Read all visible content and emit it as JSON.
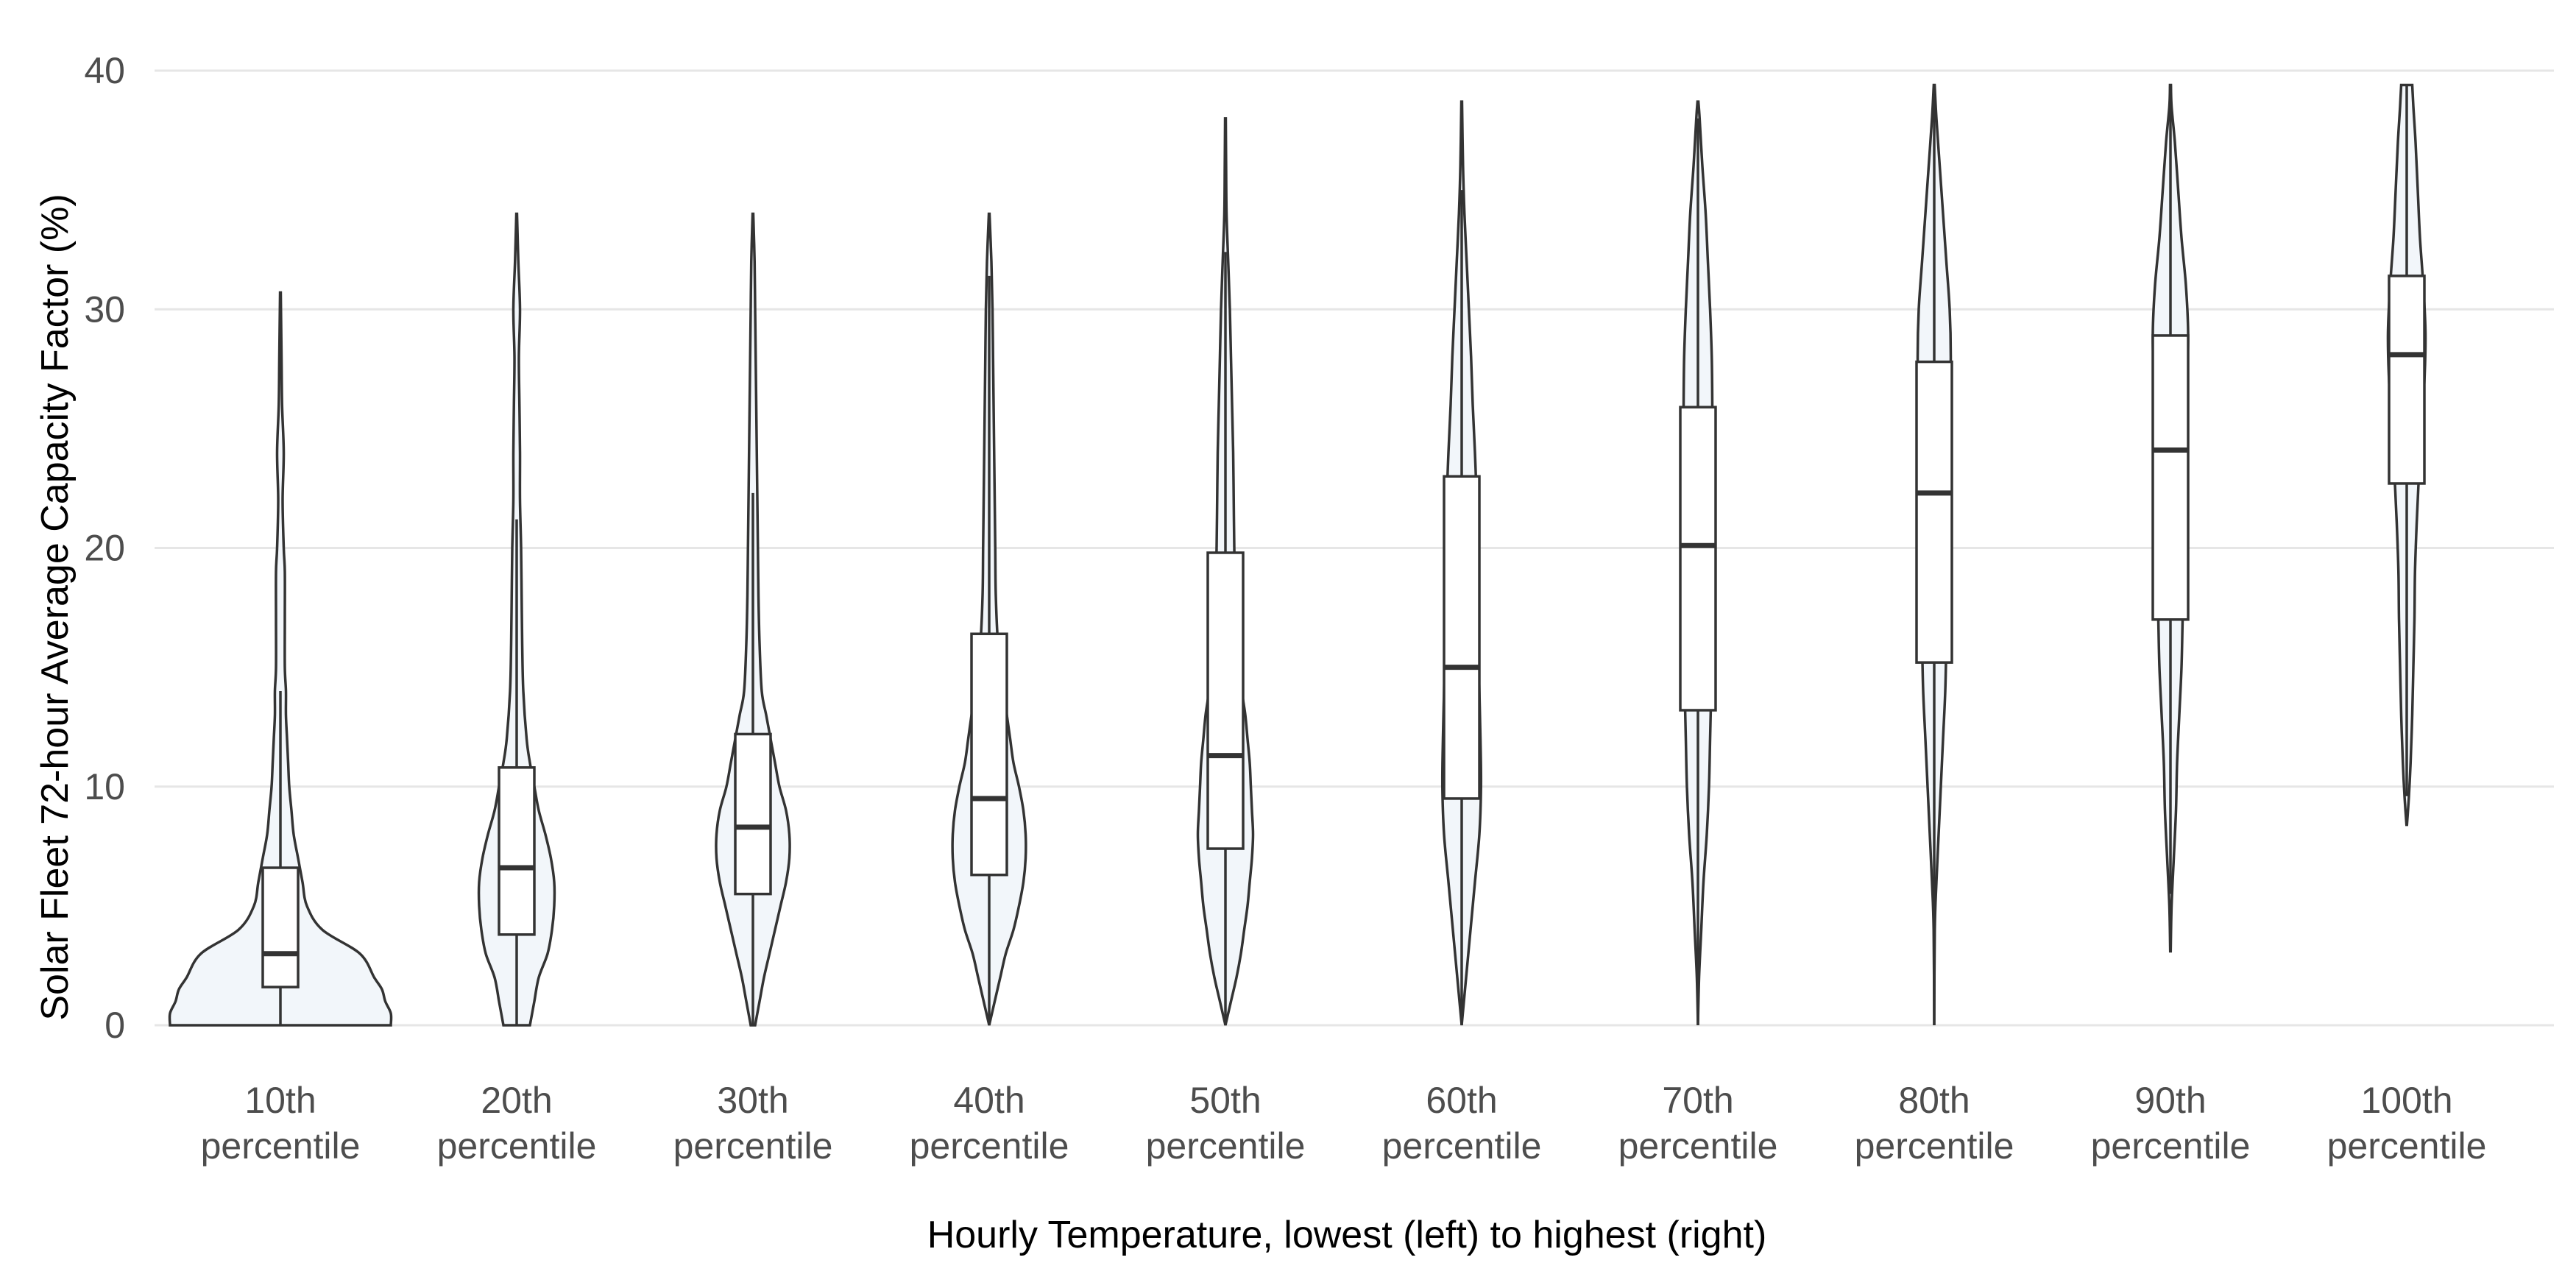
{
  "chart_data": {
    "type": "violin",
    "title": "",
    "xlabel": "Hourly Temperature, lowest (left) to highest (right)",
    "ylabel": "Solar Fleet 72-hour Average Capacity Factor (%)",
    "ylim": [
      0,
      40
    ],
    "yticks": [
      0,
      10,
      20,
      30,
      40
    ],
    "grid": "horizontal",
    "colors": {
      "violin_fill": "#f2f6fa",
      "outline": "#333333",
      "grid": "#e6e6e6",
      "tick_text": "#4d4d4d"
    },
    "categories": [
      {
        "line1": "10th",
        "line2": "percentile"
      },
      {
        "line1": "20th",
        "line2": "percentile"
      },
      {
        "line1": "30th",
        "line2": "percentile"
      },
      {
        "line1": "40th",
        "line2": "percentile"
      },
      {
        "line1": "50th",
        "line2": "percentile"
      },
      {
        "line1": "60th",
        "line2": "percentile"
      },
      {
        "line1": "70th",
        "line2": "percentile"
      },
      {
        "line1": "80th",
        "line2": "percentile"
      },
      {
        "line1": "90th",
        "line2": "percentile"
      },
      {
        "line1": "100th",
        "line2": "percentile"
      }
    ],
    "series": [
      {
        "min": 0,
        "max": 30.7,
        "q1": 1.6,
        "median": 3.0,
        "q3": 6.6,
        "whisker_low": 0,
        "whisker_high": 14.0,
        "density": [
          [
            0,
            1.0
          ],
          [
            0.5,
            1.0
          ],
          [
            1,
            0.95
          ],
          [
            1.5,
            0.92
          ],
          [
            2,
            0.85
          ],
          [
            3,
            0.72
          ],
          [
            4,
            0.38
          ],
          [
            5,
            0.24
          ],
          [
            6,
            0.2
          ],
          [
            7,
            0.16
          ],
          [
            8,
            0.12
          ],
          [
            9,
            0.1
          ],
          [
            10,
            0.08
          ],
          [
            11,
            0.07
          ],
          [
            12,
            0.06
          ],
          [
            13,
            0.05
          ],
          [
            14,
            0.05
          ],
          [
            15,
            0.04
          ],
          [
            17,
            0.04
          ],
          [
            19,
            0.04
          ],
          [
            20,
            0.03
          ],
          [
            22,
            0.02
          ],
          [
            24,
            0.03
          ],
          [
            26,
            0.015
          ],
          [
            28,
            0.01
          ],
          [
            30.7,
            0.003
          ]
        ]
      },
      {
        "min": 0,
        "max": 34.0,
        "q1": 3.8,
        "median": 6.6,
        "q3": 10.8,
        "whisker_low": 0,
        "whisker_high": 21.2,
        "density": [
          [
            0,
            0.12
          ],
          [
            0.5,
            0.14
          ],
          [
            1,
            0.16
          ],
          [
            2,
            0.2
          ],
          [
            3,
            0.28
          ],
          [
            4,
            0.32
          ],
          [
            5,
            0.34
          ],
          [
            6,
            0.34
          ],
          [
            7,
            0.31
          ],
          [
            8,
            0.26
          ],
          [
            9,
            0.2
          ],
          [
            10,
            0.16
          ],
          [
            11,
            0.12
          ],
          [
            12,
            0.09
          ],
          [
            14,
            0.06
          ],
          [
            16,
            0.05
          ],
          [
            18,
            0.045
          ],
          [
            20,
            0.04
          ],
          [
            22,
            0.03
          ],
          [
            24,
            0.03
          ],
          [
            26,
            0.025
          ],
          [
            28,
            0.02
          ],
          [
            30,
            0.03
          ],
          [
            32,
            0.015
          ],
          [
            34,
            0.003
          ]
        ]
      },
      {
        "min": 0,
        "max": 34.0,
        "q1": 5.5,
        "median": 8.3,
        "q3": 12.2,
        "whisker_low": 0,
        "whisker_high": 22.3,
        "density": [
          [
            0,
            0.02
          ],
          [
            1,
            0.06
          ],
          [
            2,
            0.1
          ],
          [
            3,
            0.15
          ],
          [
            4,
            0.2
          ],
          [
            5,
            0.25
          ],
          [
            6,
            0.3
          ],
          [
            7,
            0.33
          ],
          [
            8,
            0.33
          ],
          [
            9,
            0.3
          ],
          [
            10,
            0.24
          ],
          [
            11,
            0.2
          ],
          [
            12,
            0.16
          ],
          [
            13,
            0.12
          ],
          [
            14,
            0.08
          ],
          [
            16,
            0.06
          ],
          [
            18,
            0.05
          ],
          [
            20,
            0.045
          ],
          [
            22,
            0.04
          ],
          [
            24,
            0.035
          ],
          [
            26,
            0.03
          ],
          [
            28,
            0.025
          ],
          [
            30,
            0.02
          ],
          [
            32,
            0.015
          ],
          [
            34,
            0.003
          ]
        ]
      },
      {
        "min": 0,
        "max": 34.0,
        "q1": 6.3,
        "median": 9.5,
        "q3": 16.4,
        "whisker_low": 0,
        "whisker_high": 31.4,
        "density": [
          [
            0,
            0.0
          ],
          [
            1,
            0.05
          ],
          [
            2,
            0.1
          ],
          [
            3,
            0.15
          ],
          [
            4,
            0.22
          ],
          [
            5,
            0.27
          ],
          [
            6,
            0.31
          ],
          [
            7,
            0.33
          ],
          [
            8,
            0.33
          ],
          [
            9,
            0.31
          ],
          [
            10,
            0.27
          ],
          [
            11,
            0.22
          ],
          [
            12,
            0.19
          ],
          [
            13,
            0.16
          ],
          [
            14,
            0.13
          ],
          [
            16,
            0.08
          ],
          [
            18,
            0.06
          ],
          [
            20,
            0.055
          ],
          [
            22,
            0.05
          ],
          [
            24,
            0.045
          ],
          [
            26,
            0.04
          ],
          [
            28,
            0.035
          ],
          [
            30,
            0.03
          ],
          [
            32,
            0.02
          ],
          [
            34,
            0.003
          ]
        ]
      },
      {
        "min": 0,
        "max": 38.0,
        "q1": 7.4,
        "median": 11.3,
        "q3": 19.8,
        "whisker_low": 0,
        "whisker_high": 32.4,
        "density": [
          [
            0,
            0.0
          ],
          [
            1,
            0.05
          ],
          [
            2,
            0.1
          ],
          [
            3,
            0.14
          ],
          [
            4,
            0.17
          ],
          [
            5,
            0.2
          ],
          [
            6,
            0.22
          ],
          [
            7,
            0.24
          ],
          [
            8,
            0.25
          ],
          [
            9,
            0.24
          ],
          [
            10,
            0.23
          ],
          [
            11,
            0.22
          ],
          [
            12,
            0.2
          ],
          [
            13,
            0.18
          ],
          [
            14,
            0.15
          ],
          [
            16,
            0.11
          ],
          [
            18,
            0.09
          ],
          [
            20,
            0.08
          ],
          [
            22,
            0.075
          ],
          [
            24,
            0.07
          ],
          [
            26,
            0.06
          ],
          [
            28,
            0.05
          ],
          [
            30,
            0.04
          ],
          [
            32,
            0.025
          ],
          [
            34,
            0.01
          ],
          [
            36,
            0.006
          ],
          [
            38,
            0.003
          ]
        ]
      },
      {
        "min": 0,
        "max": 38.7,
        "q1": 9.5,
        "median": 15.0,
        "q3": 23.0,
        "whisker_low": 0,
        "whisker_high": 35.0,
        "density": [
          [
            0,
            0.0
          ],
          [
            2,
            0.04
          ],
          [
            4,
            0.08
          ],
          [
            6,
            0.12
          ],
          [
            8,
            0.16
          ],
          [
            10,
            0.175
          ],
          [
            12,
            0.17
          ],
          [
            14,
            0.16
          ],
          [
            16,
            0.15
          ],
          [
            18,
            0.145
          ],
          [
            20,
            0.14
          ],
          [
            22,
            0.135
          ],
          [
            24,
            0.12
          ],
          [
            26,
            0.1
          ],
          [
            28,
            0.085
          ],
          [
            30,
            0.065
          ],
          [
            32,
            0.045
          ],
          [
            34,
            0.025
          ],
          [
            36,
            0.012
          ],
          [
            38.7,
            0.003
          ]
        ]
      },
      {
        "min": 0,
        "max": 38.7,
        "q1": 13.2,
        "median": 20.1,
        "q3": 25.9,
        "whisker_low": 0,
        "whisker_high": 38.0,
        "density": [
          [
            0,
            0.0
          ],
          [
            2,
            0.01
          ],
          [
            4,
            0.03
          ],
          [
            6,
            0.05
          ],
          [
            8,
            0.08
          ],
          [
            10,
            0.1
          ],
          [
            12,
            0.11
          ],
          [
            14,
            0.12
          ],
          [
            16,
            0.13
          ],
          [
            18,
            0.13
          ],
          [
            20,
            0.13
          ],
          [
            22,
            0.13
          ],
          [
            24,
            0.13
          ],
          [
            26,
            0.13
          ],
          [
            28,
            0.125
          ],
          [
            30,
            0.11
          ],
          [
            32,
            0.09
          ],
          [
            34,
            0.07
          ],
          [
            36,
            0.04
          ],
          [
            38,
            0.015
          ],
          [
            38.7,
            0.004
          ]
        ]
      },
      {
        "min": 0,
        "max": 39.4,
        "q1": 15.2,
        "median": 22.3,
        "q3": 27.8,
        "whisker_low": 0,
        "whisker_high": 39.0,
        "density": [
          [
            0,
            0.0
          ],
          [
            4,
            0.005
          ],
          [
            6,
            0.02
          ],
          [
            8,
            0.04
          ],
          [
            10,
            0.06
          ],
          [
            12,
            0.08
          ],
          [
            14,
            0.1
          ],
          [
            16,
            0.11
          ],
          [
            18,
            0.12
          ],
          [
            20,
            0.13
          ],
          [
            22,
            0.13
          ],
          [
            24,
            0.13
          ],
          [
            26,
            0.14
          ],
          [
            28,
            0.15
          ],
          [
            30,
            0.14
          ],
          [
            32,
            0.11
          ],
          [
            34,
            0.08
          ],
          [
            36,
            0.05
          ],
          [
            38,
            0.02
          ],
          [
            39.4,
            0.004
          ]
        ]
      },
      {
        "min": 3.1,
        "max": 39.4,
        "q1": 17.0,
        "median": 24.1,
        "q3": 28.9,
        "whisker_low": 5.5,
        "whisker_high": 39.0,
        "density": [
          [
            3.1,
            0.002
          ],
          [
            5,
            0.01
          ],
          [
            7,
            0.03
          ],
          [
            9,
            0.05
          ],
          [
            11,
            0.06
          ],
          [
            13,
            0.08
          ],
          [
            15,
            0.1
          ],
          [
            17,
            0.11
          ],
          [
            19,
            0.12
          ],
          [
            21,
            0.12
          ],
          [
            23,
            0.13
          ],
          [
            25,
            0.14
          ],
          [
            27,
            0.15
          ],
          [
            29,
            0.16
          ],
          [
            31,
            0.14
          ],
          [
            33,
            0.1
          ],
          [
            35,
            0.07
          ],
          [
            37,
            0.04
          ],
          [
            38.5,
            0.01
          ],
          [
            39.4,
            0.004
          ]
        ]
      },
      {
        "min": 8.4,
        "max": 39.4,
        "q1": 22.7,
        "median": 28.1,
        "q3": 31.4,
        "whisker_low": 9.6,
        "whisker_high": 39.4,
        "density": [
          [
            8.4,
            0.002
          ],
          [
            9.6,
            0.02
          ],
          [
            11,
            0.035
          ],
          [
            13,
            0.05
          ],
          [
            15,
            0.06
          ],
          [
            17,
            0.07
          ],
          [
            19,
            0.075
          ],
          [
            21,
            0.09
          ],
          [
            23,
            0.11
          ],
          [
            25,
            0.13
          ],
          [
            27,
            0.16
          ],
          [
            29,
            0.17
          ],
          [
            31,
            0.15
          ],
          [
            33,
            0.12
          ],
          [
            35,
            0.1
          ],
          [
            37,
            0.08
          ],
          [
            38.5,
            0.06
          ],
          [
            39.4,
            0.05
          ]
        ]
      }
    ]
  }
}
